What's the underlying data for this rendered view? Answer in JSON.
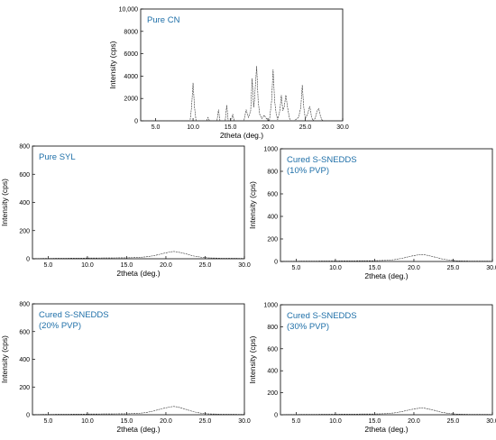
{
  "chart_data": [
    {
      "type": "line",
      "title_lines": [
        "Pure CN"
      ],
      "xlabel": "2theta (deg.)",
      "ylabel": "Intensity (cps)",
      "xlim": [
        3,
        30
      ],
      "ylim": [
        0,
        10000
      ],
      "xticks": [
        "5.0",
        "10.0",
        "15.0",
        "20.0",
        "25.0",
        "30.0"
      ],
      "yticks": [
        "0",
        "2000",
        "4000",
        "6000",
        "8000",
        "10,000"
      ],
      "grid": false,
      "series": [
        {
          "x": [
            3,
            9.6,
            9.8,
            10.0,
            10.2,
            10.4,
            11.8,
            12.0,
            12.2,
            13.2,
            13.4,
            13.6,
            14.3,
            14.5,
            14.7,
            15.1,
            15.3,
            15.5,
            16.8,
            17.1,
            17.4,
            17.7,
            17.9,
            18.1,
            18.2,
            18.5,
            18.7,
            18.9,
            19.2,
            19.5,
            19.8,
            20.2,
            20.5,
            20.7,
            20.9,
            21.1,
            21.3,
            21.6,
            21.8,
            22.0,
            22.2,
            22.4,
            22.7,
            22.9,
            23.1,
            23.5,
            24.1,
            24.4,
            24.6,
            24.8,
            25.0,
            25.3,
            25.6,
            25.8,
            26.0,
            26.3,
            26.6,
            26.8,
            27.0,
            27.2,
            27.5,
            28.2,
            30
          ],
          "y": [
            0,
            0,
            1200,
            3400,
            1200,
            0,
            0,
            300,
            0,
            0,
            1000,
            0,
            0,
            1400,
            0,
            0,
            600,
            0,
            0,
            1000,
            300,
            900,
            3800,
            1200,
            1800,
            4900,
            1800,
            600,
            200,
            500,
            200,
            0,
            1800,
            4600,
            1800,
            700,
            100,
            900,
            2300,
            900,
            1300,
            2300,
            900,
            200,
            0,
            0,
            300,
            1200,
            3200,
            1200,
            200,
            600,
            1300,
            500,
            0,
            200,
            900,
            1100,
            500,
            100,
            0,
            0,
            0
          ]
        }
      ]
    },
    {
      "type": "line",
      "title_lines": [
        "Pure SYL"
      ],
      "xlabel": "2theta (deg.)",
      "ylabel": "Intensity (cps)",
      "xlim": [
        3,
        30
      ],
      "ylim": [
        0,
        800
      ],
      "xticks": [
        "5.0",
        "10.0",
        "15.0",
        "20.0",
        "25.0",
        "30.0"
      ],
      "yticks": [
        "0",
        "200",
        "400",
        "600",
        "800"
      ],
      "grid": false,
      "series": [
        {
          "x": [
            3,
            5,
            10,
            15,
            16.5,
            17.5,
            18.5,
            19.5,
            20.5,
            21,
            21.5,
            22.5,
            23.5,
            24.5,
            25.5,
            27,
            30
          ],
          "y": [
            2,
            3,
            5,
            7,
            9,
            14,
            22,
            36,
            48,
            52,
            48,
            36,
            20,
            11,
            6,
            4,
            3
          ]
        }
      ]
    },
    {
      "type": "line",
      "title_lines": [
        "Cured S-SNEDDS",
        "(10% PVP)"
      ],
      "xlabel": "2theta (deg.)",
      "ylabel": "Intensity (cps)",
      "xlim": [
        3,
        30
      ],
      "ylim": [
        0,
        1000
      ],
      "xticks": [
        "5.0",
        "10.0",
        "15.0",
        "20.0",
        "25.0",
        "30.0"
      ],
      "yticks": [
        "0",
        "200",
        "400",
        "600",
        "800",
        "1000"
      ],
      "grid": false,
      "series": [
        {
          "x": [
            3,
            5,
            10,
            15,
            16.5,
            17.5,
            18.5,
            19.5,
            20.5,
            21,
            21.5,
            22.5,
            23.5,
            24.5,
            25.5,
            27,
            30
          ],
          "y": [
            2,
            3,
            5,
            7,
            10,
            16,
            28,
            45,
            58,
            62,
            58,
            42,
            24,
            12,
            6,
            4,
            3
          ]
        }
      ]
    },
    {
      "type": "line",
      "title_lines": [
        "Cured S-SNEDDS",
        "(20% PVP)"
      ],
      "xlabel": "2theta (deg.)",
      "ylabel": "Intensity (cps)",
      "xlim": [
        3,
        30
      ],
      "ylim": [
        0,
        800
      ],
      "xticks": [
        "5.0",
        "10.0",
        "15.0",
        "20.0",
        "25.0",
        "30.0"
      ],
      "yticks": [
        "0",
        "200",
        "400",
        "600",
        "800"
      ],
      "grid": false,
      "series": [
        {
          "x": [
            3,
            5,
            10,
            15,
            16.5,
            17.5,
            18.5,
            19.5,
            20.5,
            21,
            21.5,
            22.5,
            23.5,
            24.5,
            25.5,
            27,
            30
          ],
          "y": [
            2,
            3,
            5,
            7,
            10,
            16,
            28,
            44,
            56,
            60,
            56,
            40,
            22,
            11,
            6,
            4,
            3
          ]
        }
      ]
    },
    {
      "type": "line",
      "title_lines": [
        "Cured S-SNEDDS",
        "(30% PVP)"
      ],
      "xlabel": "2theta (deg.)",
      "ylabel": "Intensity (cps)",
      "xlim": [
        3,
        30
      ],
      "ylim": [
        0,
        1000
      ],
      "xticks": [
        "5.0",
        "10.0",
        "15.0",
        "20.0",
        "25.0",
        "30.0"
      ],
      "yticks": [
        "0",
        "200",
        "400",
        "600",
        "800",
        "1000"
      ],
      "grid": false,
      "series": [
        {
          "x": [
            3,
            5,
            10,
            15,
            16.5,
            17.5,
            18.5,
            19.5,
            20.5,
            21,
            21.5,
            22.5,
            23.5,
            24.5,
            25.5,
            27,
            30
          ],
          "y": [
            2,
            3,
            5,
            7,
            10,
            17,
            29,
            46,
            58,
            62,
            58,
            42,
            23,
            11,
            6,
            4,
            3
          ]
        }
      ]
    }
  ]
}
